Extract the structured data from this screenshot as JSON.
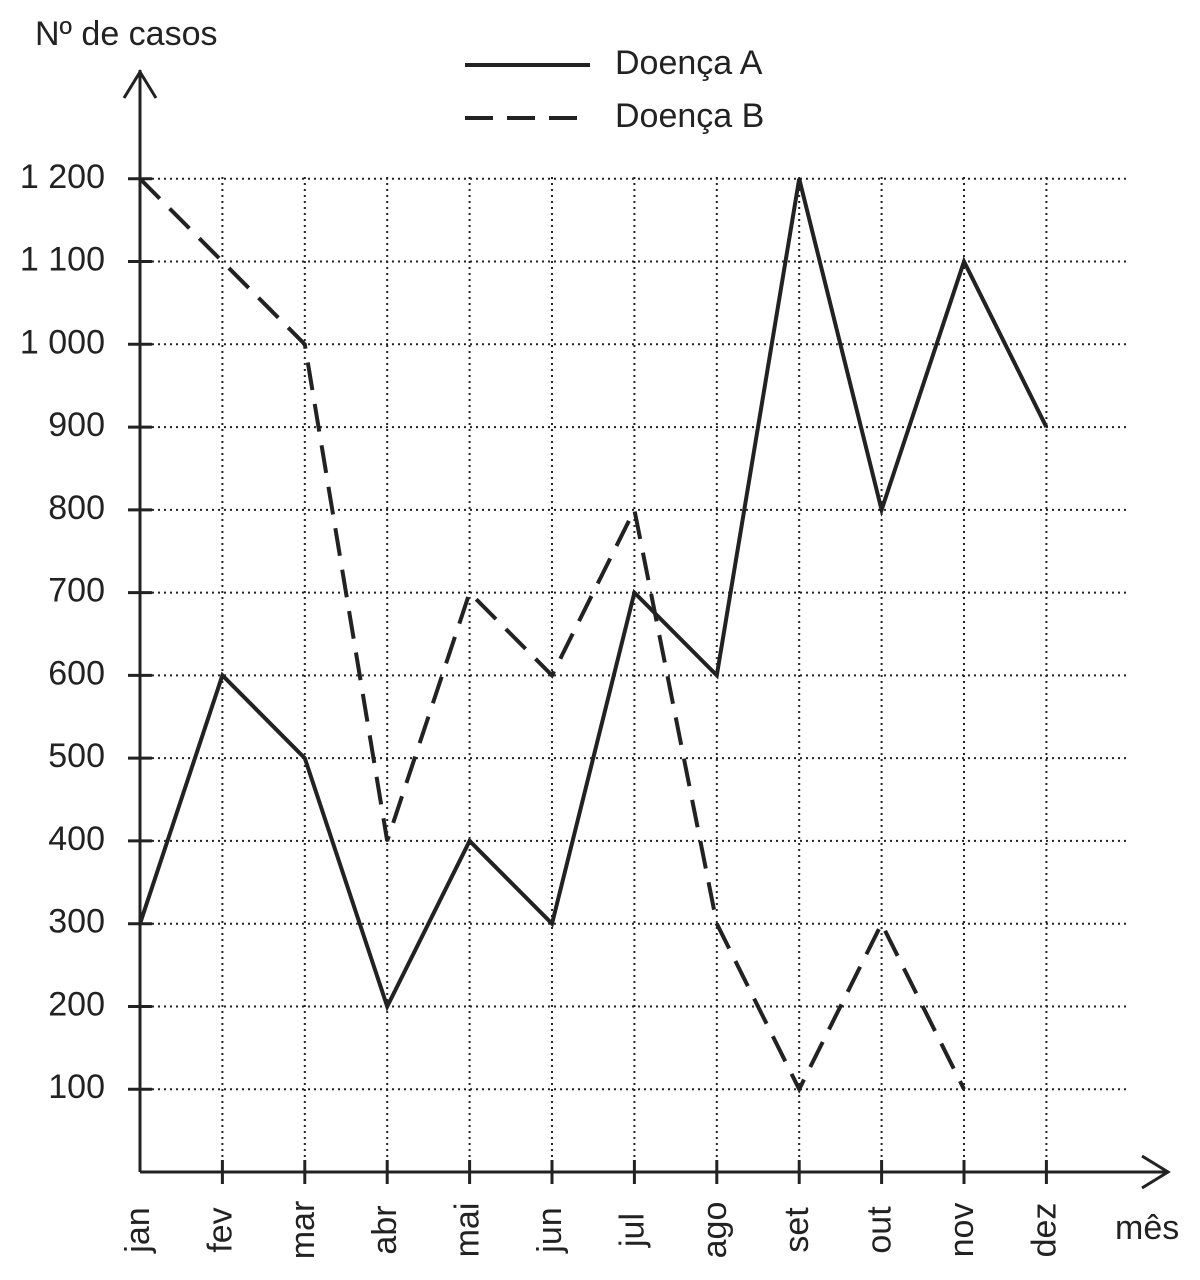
{
  "chart_data": {
    "type": "line",
    "y_label": "Nº de casos",
    "x_label": "mês",
    "categories": [
      "jan",
      "fev",
      "mar",
      "abr",
      "mai",
      "jun",
      "jul",
      "ago",
      "set",
      "out",
      "nov",
      "dez"
    ],
    "series": [
      {
        "name": "Doença A",
        "color": "#222222",
        "style": "solid",
        "values": [
          300,
          600,
          500,
          200,
          400,
          300,
          700,
          600,
          1200,
          800,
          1100,
          900
        ]
      },
      {
        "name": "Doença B",
        "color": "#222222",
        "style": "dashed",
        "values": [
          1200,
          1100,
          1000,
          400,
          700,
          600,
          800,
          300,
          100,
          300,
          100,
          null
        ]
      }
    ],
    "ylim": [
      0,
      1300
    ],
    "yticks": [
      100,
      200,
      300,
      400,
      500,
      600,
      700,
      800,
      900,
      {
        "value": 1000,
        "label": "1 000"
      },
      {
        "value": 1100,
        "label": "1 100"
      },
      {
        "value": 1200,
        "label": "1 200"
      }
    ],
    "grid": true,
    "legend": "top"
  }
}
